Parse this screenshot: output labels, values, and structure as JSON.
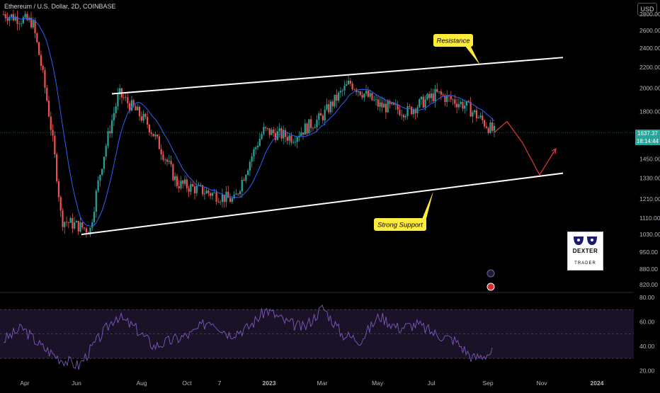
{
  "header": {
    "title": "Ethereum / U.S. Dollar, 2D, COINBASE",
    "currency_label": "USD"
  },
  "current_price": {
    "value": "1637.37",
    "countdown": "18:14:44"
  },
  "annotations": {
    "resistance": "Resistance",
    "support": "Strong Support"
  },
  "logo": {
    "name": "DEXTER",
    "sub": "TRADER"
  },
  "colors": {
    "bg": "#000000",
    "up": "#26a69a",
    "down": "#ef5350",
    "ma": "#2962ff",
    "rsi": "#7e57c2",
    "callout": "#ffeb3b",
    "projection": "#e53935"
  },
  "chart_data": [
    {
      "type": "candlestick",
      "title": "Ethereum / U.S. Dollar, 2D, COINBASE",
      "y_ticks": [
        820,
        880,
        950,
        1030,
        1110,
        1210,
        1330,
        1450,
        1637.37,
        1800,
        2000,
        2200,
        2400,
        2600,
        2800
      ],
      "y_tick_labels": [
        "820.00",
        "880.00",
        "950.00",
        "1030.00",
        "1110.00",
        "1210.00",
        "1330.00",
        "1450.00",
        "1637.37",
        "1800.00",
        "2000.00",
        "2200.00",
        "2400.00",
        "2600.00",
        "2800.00"
      ],
      "x_tick_labels": [
        "Apr",
        "Jun",
        "Aug",
        "Oct",
        "7",
        "2023",
        "Mar",
        "May",
        "Jul",
        "Sep",
        "Nov",
        "2024"
      ],
      "ylim": [
        800,
        2900
      ],
      "log_scale": true,
      "series_trend": {
        "note": "close, approximate",
        "dates": [
          "Apr",
          "May",
          "Jun",
          "Jul",
          "Aug",
          "Sep",
          "Oct",
          "Nov",
          "Dec",
          "2023",
          "Feb",
          "Mar",
          "Apr",
          "May",
          "Jun",
          "Jul",
          "Aug",
          "Sep"
        ],
        "close": [
          2800,
          2700,
          1100,
          1050,
          1950,
          1700,
          1300,
          1250,
          1200,
          1650,
          1600,
          1750,
          2050,
          1850,
          1800,
          1950,
          1850,
          1637
        ]
      },
      "trendlines": [
        {
          "name": "Resistance",
          "from": [
            "Jul",
            1950
          ],
          "to": [
            "Nov",
            2300
          ]
        },
        {
          "name": "Strong Support",
          "from": [
            "Jun",
            1030
          ],
          "to": [
            "Nov",
            1360
          ]
        }
      ],
      "projection": [
        1637,
        1720,
        1560,
        1350,
        1520
      ],
      "grid": false
    },
    {
      "type": "line",
      "indicator": "RSI",
      "y_ticks": [
        20,
        40,
        60,
        80
      ],
      "y_tick_labels": [
        "20.00",
        "40.00",
        "60.00",
        "80.00"
      ],
      "bands": [
        30,
        50,
        70
      ],
      "ylim": [
        15,
        80
      ],
      "values_approx": [
        45,
        55,
        40,
        30,
        24,
        45,
        65,
        55,
        40,
        45,
        50,
        62,
        50,
        55,
        70,
        60,
        55,
        72,
        50,
        45,
        65,
        55,
        58,
        50,
        45,
        30,
        35
      ]
    }
  ]
}
